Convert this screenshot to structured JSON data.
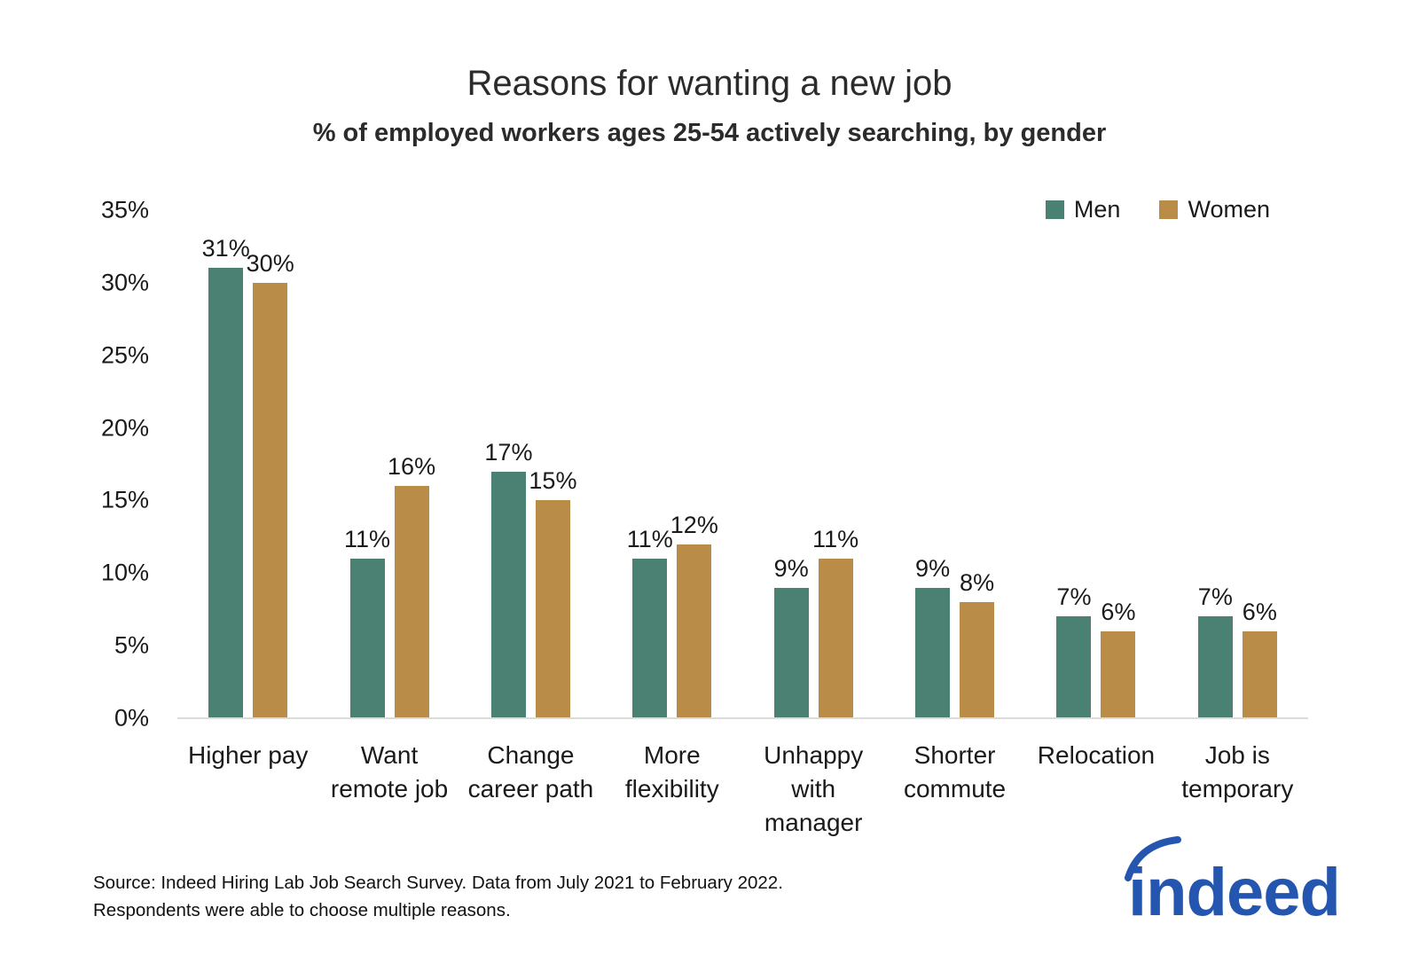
{
  "header": {
    "title": "Reasons for wanting a new job",
    "subtitle": "% of employed workers ages 25-54 actively searching, by gender"
  },
  "chart_data": {
    "type": "bar",
    "title": "Reasons for wanting a new job",
    "subtitle": "% of employed workers ages 25-54 actively searching, by gender",
    "categories": [
      "Higher pay",
      "Want remote job",
      "Change career path",
      "More flexibility",
      "Unhappy with manager",
      "Shorter commute",
      "Relocation",
      "Job is temporary"
    ],
    "category_lines": [
      [
        "Higher pay"
      ],
      [
        "Want",
        "remote job"
      ],
      [
        "Change",
        "career path"
      ],
      [
        "More",
        "flexibility"
      ],
      [
        "Unhappy",
        "with",
        "manager"
      ],
      [
        "Shorter",
        "commute"
      ],
      [
        "Relocation"
      ],
      [
        "Job is",
        "temporary"
      ]
    ],
    "series": [
      {
        "name": "Men",
        "color": "#4A8172",
        "values": [
          31,
          11,
          17,
          11,
          9,
          9,
          7,
          7
        ]
      },
      {
        "name": "Women",
        "color": "#B98C48",
        "values": [
          30,
          16,
          15,
          12,
          11,
          8,
          6,
          6
        ]
      }
    ],
    "value_suffix": "%",
    "ylabel": "",
    "xlabel": "",
    "ylim": [
      0,
      35
    ],
    "yticks": [
      35,
      30,
      25,
      20,
      15,
      10,
      5,
      0
    ],
    "ytick_suffix": "%",
    "grid": false,
    "legend_position": "top-right"
  },
  "footer": {
    "source_line1": "Source: Indeed Hiring Lab Job Search Survey. Data from July 2021 to February 2022.",
    "source_line2": "Respondents were able to choose multiple reasons.",
    "logo_text": "indeed",
    "logo_color": "#2456B0"
  }
}
